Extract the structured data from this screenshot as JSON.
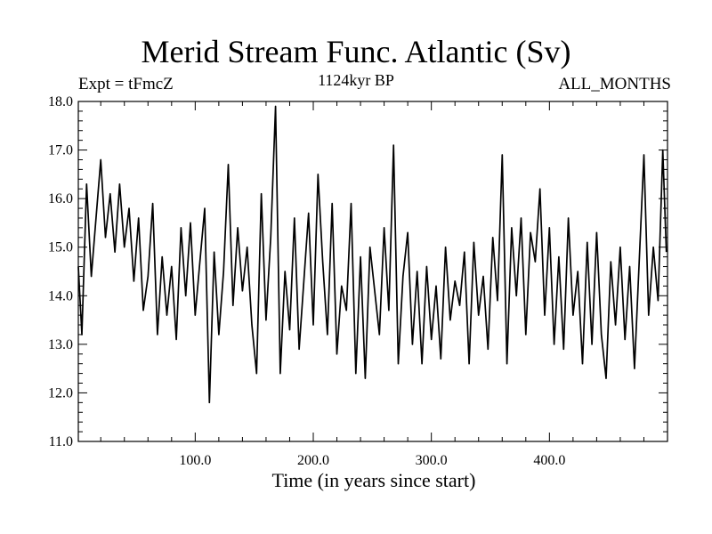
{
  "chart_data": {
    "type": "line",
    "title": "Merid Stream Func. Atlantic (Sv)",
    "subtitle": "1124kyr BP",
    "left_label": "Expt = tFmcZ",
    "right_label": "ALL_MONTHS",
    "xlabel": "Time (in years since start)",
    "ylabel": "",
    "xlim": [
      1,
      500
    ],
    "ylim": [
      11.0,
      18.0
    ],
    "x_ticks": [
      100,
      200,
      300,
      400
    ],
    "x_tick_labels": [
      "100.0",
      "200.0",
      "300.0",
      "400.0"
    ],
    "y_ticks": [
      11,
      12,
      13,
      14,
      15,
      16,
      17,
      18
    ],
    "y_tick_labels": [
      "11.0",
      "12.0",
      "13.0",
      "14.0",
      "15.0",
      "16.0",
      "17.0",
      "18.0"
    ],
    "series": [
      {
        "name": "Merid Stream Func. Atlantic",
        "x": [
          1,
          4,
          8,
          12,
          16,
          20,
          24,
          28,
          32,
          36,
          40,
          44,
          48,
          52,
          56,
          60,
          64,
          68,
          72,
          76,
          80,
          84,
          88,
          92,
          96,
          100,
          104,
          108,
          112,
          116,
          120,
          124,
          128,
          132,
          136,
          140,
          144,
          148,
          152,
          156,
          160,
          164,
          168,
          172,
          176,
          180,
          184,
          188,
          192,
          196,
          200,
          204,
          208,
          212,
          216,
          220,
          224,
          228,
          232,
          236,
          240,
          244,
          248,
          252,
          256,
          260,
          264,
          268,
          272,
          276,
          280,
          284,
          288,
          292,
          296,
          300,
          304,
          308,
          312,
          316,
          320,
          324,
          328,
          332,
          336,
          340,
          344,
          348,
          352,
          356,
          360,
          364,
          368,
          372,
          376,
          380,
          384,
          388,
          392,
          396,
          400,
          404,
          408,
          412,
          416,
          420,
          424,
          428,
          432,
          436,
          440,
          444,
          448,
          452,
          456,
          460,
          464,
          468,
          472,
          476,
          480,
          484,
          488,
          492,
          496,
          499
        ],
        "values": [
          14.6,
          13.2,
          16.3,
          14.4,
          15.6,
          16.8,
          15.2,
          16.1,
          14.9,
          16.3,
          15.0,
          15.8,
          14.3,
          15.6,
          13.7,
          14.4,
          15.9,
          13.2,
          14.8,
          13.6,
          14.6,
          13.1,
          15.4,
          14.0,
          15.5,
          13.6,
          14.7,
          15.8,
          11.8,
          14.9,
          13.2,
          14.5,
          16.7,
          13.8,
          15.4,
          14.1,
          15.0,
          13.4,
          12.4,
          16.1,
          13.5,
          15.2,
          17.9,
          12.4,
          14.5,
          13.3,
          15.6,
          12.9,
          14.3,
          15.7,
          13.4,
          16.5,
          14.7,
          13.2,
          15.9,
          12.8,
          14.2,
          13.7,
          15.9,
          12.4,
          14.8,
          12.3,
          15.0,
          14.1,
          13.2,
          15.4,
          13.7,
          17.1,
          12.6,
          14.4,
          15.3,
          13.0,
          14.5,
          12.6,
          14.6,
          13.1,
          14.2,
          12.7,
          15.0,
          13.5,
          14.3,
          13.8,
          14.9,
          12.6,
          15.1,
          13.6,
          14.4,
          12.9,
          15.2,
          13.9,
          16.9,
          12.6,
          15.4,
          14.0,
          15.6,
          13.2,
          15.3,
          14.7,
          16.2,
          13.6,
          15.4,
          13.0,
          14.8,
          12.9,
          15.6,
          13.6,
          14.5,
          12.6,
          15.1,
          13.0,
          15.3,
          13.2,
          12.3,
          14.7,
          13.4,
          15.0,
          13.1,
          14.6,
          12.5,
          14.7,
          16.9,
          13.6,
          15.0,
          13.9,
          17.0,
          14.9
        ]
      }
    ]
  }
}
